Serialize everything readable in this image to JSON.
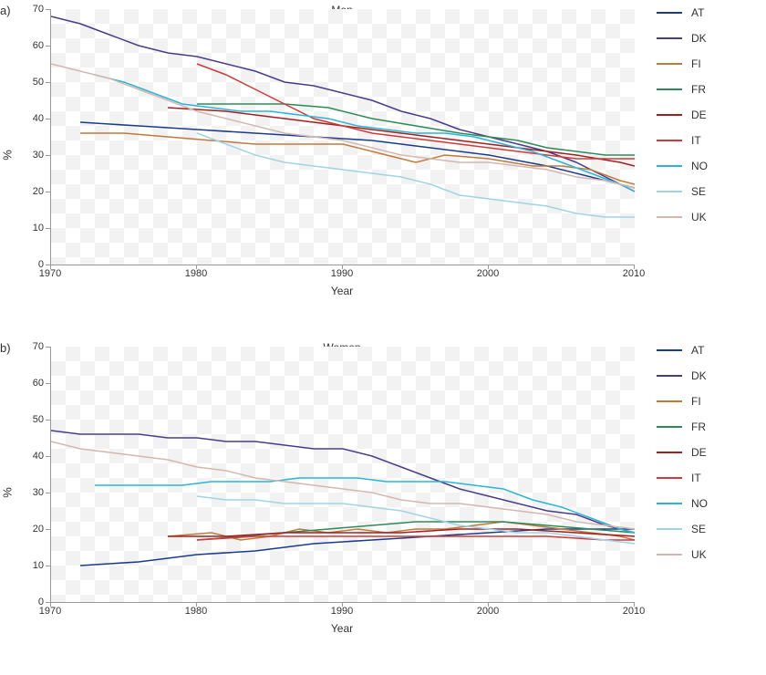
{
  "background_color": "#ffffff",
  "tick_color": "#999999",
  "text_color": "#333333",
  "legend": {
    "items": [
      {
        "code": "AT",
        "color": "#1a3c8c"
      },
      {
        "code": "DK",
        "color": "#4a3c8c"
      },
      {
        "code": "FI",
        "color": "#c07a3a"
      },
      {
        "code": "FR",
        "color": "#2e8b57"
      },
      {
        "code": "DE",
        "color": "#a02020"
      },
      {
        "code": "IT",
        "color": "#d03a3a"
      },
      {
        "code": "NO",
        "color": "#2bb5d6"
      },
      {
        "code": "SE",
        "color": "#9fd4e6"
      },
      {
        "code": "UK",
        "color": "#d4b8b0"
      }
    ]
  },
  "panels": [
    {
      "id": "a",
      "label": "a)",
      "title": "Men",
      "xlabel": "Year",
      "ylabel": "%",
      "xlim": [
        1970,
        2010
      ],
      "ylim": [
        0,
        70
      ],
      "xticks": [
        1970,
        1980,
        1990,
        2000,
        2010
      ],
      "yticks": [
        0,
        10,
        20,
        30,
        40,
        50,
        60,
        70
      ],
      "line_width": 1.5,
      "grid_checker": {
        "square": 16,
        "light": "#ffffff",
        "dark": "#f2f2f2"
      },
      "series": {
        "AT": [
          [
            1972,
            39
          ],
          [
            1976,
            38
          ],
          [
            1980,
            37
          ],
          [
            1984,
            36
          ],
          [
            1988,
            35
          ],
          [
            1992,
            34
          ],
          [
            1996,
            32
          ],
          [
            2000,
            30
          ],
          [
            2004,
            27
          ],
          [
            2008,
            23
          ],
          [
            2010,
            21
          ]
        ],
        "DK": [
          [
            1970,
            68
          ],
          [
            1972,
            66
          ],
          [
            1974,
            63
          ],
          [
            1976,
            60
          ],
          [
            1978,
            58
          ],
          [
            1980,
            57
          ],
          [
            1982,
            55
          ],
          [
            1984,
            53
          ],
          [
            1986,
            50
          ],
          [
            1988,
            49
          ],
          [
            1990,
            47
          ],
          [
            1992,
            45
          ],
          [
            1994,
            42
          ],
          [
            1996,
            40
          ],
          [
            1998,
            37
          ],
          [
            2000,
            35
          ],
          [
            2002,
            33
          ],
          [
            2004,
            31
          ],
          [
            2006,
            28
          ],
          [
            2008,
            24
          ],
          [
            2010,
            20
          ]
        ],
        "FI": [
          [
            1972,
            36
          ],
          [
            1975,
            36
          ],
          [
            1978,
            35
          ],
          [
            1981,
            34
          ],
          [
            1984,
            33
          ],
          [
            1987,
            33
          ],
          [
            1990,
            33
          ],
          [
            1993,
            30
          ],
          [
            1995,
            28
          ],
          [
            1997,
            30
          ],
          [
            2000,
            29
          ],
          [
            2003,
            27
          ],
          [
            2005,
            27
          ],
          [
            2007,
            26
          ],
          [
            2009,
            23
          ],
          [
            2010,
            22
          ]
        ],
        "FR": [
          [
            1980,
            44
          ],
          [
            1983,
            44
          ],
          [
            1986,
            44
          ],
          [
            1989,
            43
          ],
          [
            1992,
            40
          ],
          [
            1995,
            38
          ],
          [
            1998,
            36
          ],
          [
            2000,
            35
          ],
          [
            2002,
            34
          ],
          [
            2004,
            32
          ],
          [
            2006,
            31
          ],
          [
            2008,
            30
          ],
          [
            2010,
            30
          ]
        ],
        "DE": [
          [
            1978,
            43
          ],
          [
            1982,
            42
          ],
          [
            1986,
            40
          ],
          [
            1990,
            38
          ],
          [
            1994,
            36
          ],
          [
            1998,
            34
          ],
          [
            2002,
            32
          ],
          [
            2006,
            30
          ],
          [
            2009,
            28
          ],
          [
            2010,
            27
          ]
        ],
        "IT": [
          [
            1980,
            55
          ],
          [
            1982,
            52
          ],
          [
            1984,
            48
          ],
          [
            1986,
            44
          ],
          [
            1988,
            40
          ],
          [
            1990,
            38
          ],
          [
            1992,
            36
          ],
          [
            1994,
            35
          ],
          [
            1996,
            34
          ],
          [
            1998,
            33
          ],
          [
            2000,
            32
          ],
          [
            2002,
            31
          ],
          [
            2004,
            30
          ],
          [
            2006,
            29
          ],
          [
            2008,
            29
          ],
          [
            2010,
            29
          ]
        ],
        "NO": [
          [
            1973,
            52
          ],
          [
            1975,
            50
          ],
          [
            1977,
            47
          ],
          [
            1979,
            44
          ],
          [
            1981,
            43
          ],
          [
            1983,
            42
          ],
          [
            1985,
            42
          ],
          [
            1987,
            41
          ],
          [
            1989,
            40
          ],
          [
            1991,
            38
          ],
          [
            1993,
            37
          ],
          [
            1995,
            36
          ],
          [
            1997,
            36
          ],
          [
            1999,
            35
          ],
          [
            2001,
            33
          ],
          [
            2003,
            31
          ],
          [
            2005,
            28
          ],
          [
            2007,
            25
          ],
          [
            2009,
            22
          ],
          [
            2010,
            20
          ]
        ],
        "SE": [
          [
            1980,
            36
          ],
          [
            1982,
            33
          ],
          [
            1984,
            30
          ],
          [
            1986,
            28
          ],
          [
            1988,
            27
          ],
          [
            1990,
            26
          ],
          [
            1992,
            25
          ],
          [
            1994,
            24
          ],
          [
            1996,
            22
          ],
          [
            1998,
            19
          ],
          [
            2000,
            18
          ],
          [
            2002,
            17
          ],
          [
            2004,
            16
          ],
          [
            2006,
            14
          ],
          [
            2008,
            13
          ],
          [
            2010,
            13
          ]
        ],
        "UK": [
          [
            1970,
            55
          ],
          [
            1972,
            53
          ],
          [
            1974,
            51
          ],
          [
            1976,
            48
          ],
          [
            1978,
            45
          ],
          [
            1980,
            42
          ],
          [
            1982,
            40
          ],
          [
            1984,
            38
          ],
          [
            1986,
            36
          ],
          [
            1988,
            35
          ],
          [
            1990,
            34
          ],
          [
            1992,
            32
          ],
          [
            1994,
            30
          ],
          [
            1996,
            29
          ],
          [
            1998,
            28
          ],
          [
            2000,
            28
          ],
          [
            2002,
            27
          ],
          [
            2004,
            26
          ],
          [
            2006,
            24
          ],
          [
            2008,
            23
          ],
          [
            2010,
            21
          ]
        ]
      }
    },
    {
      "id": "b",
      "label": "b)",
      "title": "Women",
      "xlabel": "Year",
      "ylabel": "%",
      "xlim": [
        1970,
        2010
      ],
      "ylim": [
        0,
        70
      ],
      "xticks": [
        1970,
        1980,
        1990,
        2000,
        2010
      ],
      "yticks": [
        0,
        10,
        20,
        30,
        40,
        50,
        60,
        70
      ],
      "line_width": 1.5,
      "grid_checker": {
        "square": 16,
        "light": "#ffffff",
        "dark": "#f2f2f2"
      },
      "series": {
        "AT": [
          [
            1972,
            10
          ],
          [
            1976,
            11
          ],
          [
            1980,
            13
          ],
          [
            1984,
            14
          ],
          [
            1988,
            16
          ],
          [
            1992,
            17
          ],
          [
            1996,
            18
          ],
          [
            2000,
            19
          ],
          [
            2004,
            20
          ],
          [
            2008,
            20
          ],
          [
            2010,
            20
          ]
        ],
        "DK": [
          [
            1970,
            47
          ],
          [
            1972,
            46
          ],
          [
            1974,
            46
          ],
          [
            1976,
            46
          ],
          [
            1978,
            45
          ],
          [
            1980,
            45
          ],
          [
            1982,
            44
          ],
          [
            1984,
            44
          ],
          [
            1986,
            43
          ],
          [
            1988,
            42
          ],
          [
            1990,
            42
          ],
          [
            1992,
            40
          ],
          [
            1994,
            37
          ],
          [
            1996,
            34
          ],
          [
            1998,
            31
          ],
          [
            2000,
            29
          ],
          [
            2002,
            27
          ],
          [
            2004,
            25
          ],
          [
            2006,
            24
          ],
          [
            2008,
            21
          ],
          [
            2010,
            19
          ]
        ],
        "FI": [
          [
            1978,
            18
          ],
          [
            1981,
            19
          ],
          [
            1983,
            17
          ],
          [
            1985,
            18
          ],
          [
            1987,
            20
          ],
          [
            1989,
            19
          ],
          [
            1991,
            20
          ],
          [
            1993,
            19
          ],
          [
            1995,
            20
          ],
          [
            1997,
            20
          ],
          [
            1999,
            21
          ],
          [
            2001,
            22
          ],
          [
            2003,
            21
          ],
          [
            2005,
            20
          ],
          [
            2007,
            19
          ],
          [
            2009,
            18
          ],
          [
            2010,
            17
          ]
        ],
        "FR": [
          [
            1980,
            17
          ],
          [
            1983,
            18
          ],
          [
            1986,
            19
          ],
          [
            1989,
            20
          ],
          [
            1992,
            21
          ],
          [
            1995,
            22
          ],
          [
            1998,
            22
          ],
          [
            2001,
            22
          ],
          [
            2004,
            21
          ],
          [
            2007,
            20
          ],
          [
            2010,
            19
          ]
        ],
        "DE": [
          [
            1978,
            18
          ],
          [
            1982,
            18
          ],
          [
            1986,
            19
          ],
          [
            1990,
            19
          ],
          [
            1994,
            19
          ],
          [
            1998,
            20
          ],
          [
            2002,
            20
          ],
          [
            2006,
            19
          ],
          [
            2010,
            18
          ]
        ],
        "IT": [
          [
            1980,
            17
          ],
          [
            1984,
            18
          ],
          [
            1988,
            18
          ],
          [
            1992,
            18
          ],
          [
            1996,
            18
          ],
          [
            2000,
            18
          ],
          [
            2004,
            18
          ],
          [
            2008,
            17
          ],
          [
            2010,
            17
          ]
        ],
        "NO": [
          [
            1973,
            32
          ],
          [
            1975,
            32
          ],
          [
            1977,
            32
          ],
          [
            1979,
            32
          ],
          [
            1981,
            33
          ],
          [
            1983,
            33
          ],
          [
            1985,
            33
          ],
          [
            1987,
            34
          ],
          [
            1989,
            34
          ],
          [
            1991,
            34
          ],
          [
            1993,
            33
          ],
          [
            1995,
            33
          ],
          [
            1997,
            33
          ],
          [
            1999,
            32
          ],
          [
            2001,
            31
          ],
          [
            2003,
            28
          ],
          [
            2005,
            26
          ],
          [
            2007,
            23
          ],
          [
            2009,
            20
          ],
          [
            2010,
            19
          ]
        ],
        "SE": [
          [
            1980,
            29
          ],
          [
            1982,
            28
          ],
          [
            1984,
            28
          ],
          [
            1986,
            27
          ],
          [
            1988,
            27
          ],
          [
            1990,
            27
          ],
          [
            1992,
            26
          ],
          [
            1994,
            25
          ],
          [
            1996,
            23
          ],
          [
            1998,
            21
          ],
          [
            2000,
            20
          ],
          [
            2002,
            19
          ],
          [
            2004,
            19
          ],
          [
            2006,
            18
          ],
          [
            2008,
            17
          ],
          [
            2010,
            16
          ]
        ],
        "UK": [
          [
            1970,
            44
          ],
          [
            1972,
            42
          ],
          [
            1974,
            41
          ],
          [
            1976,
            40
          ],
          [
            1978,
            39
          ],
          [
            1980,
            37
          ],
          [
            1982,
            36
          ],
          [
            1984,
            34
          ],
          [
            1986,
            33
          ],
          [
            1988,
            32
          ],
          [
            1990,
            31
          ],
          [
            1992,
            30
          ],
          [
            1994,
            28
          ],
          [
            1996,
            27
          ],
          [
            1998,
            27
          ],
          [
            2000,
            26
          ],
          [
            2002,
            25
          ],
          [
            2004,
            24
          ],
          [
            2006,
            22
          ],
          [
            2008,
            21
          ],
          [
            2010,
            20
          ]
        ]
      }
    }
  ]
}
